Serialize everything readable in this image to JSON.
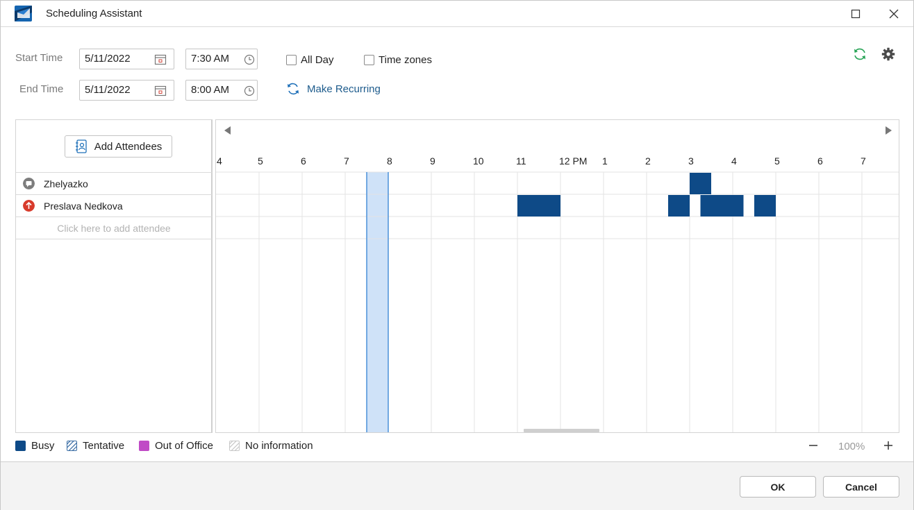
{
  "window": {
    "title": "Scheduling Assistant"
  },
  "form": {
    "start_label": "Start Time",
    "end_label": "End Time",
    "start_date": "5/11/2022",
    "start_time": "7:30 AM",
    "end_date": "5/11/2022",
    "end_time": "8:00 AM",
    "all_day_label": "All Day",
    "time_zones_label": "Time zones",
    "make_recurring_label": "Make Recurring"
  },
  "attendees": {
    "add_button_label": "Add Attendees",
    "list": [
      {
        "name": "Zhelyazko",
        "status_color": "#7d7d7d"
      },
      {
        "name": "Preslava Nedkova",
        "status_color": "#d83b2c"
      }
    ],
    "placeholder": "Click here to add attendee"
  },
  "timeline": {
    "hour_labels": [
      "4",
      "5",
      "6",
      "7",
      "8",
      "9",
      "10",
      "11",
      "12 PM",
      "1",
      "2",
      "3",
      "4",
      "5",
      "6",
      "7"
    ],
    "first_hour": 4,
    "selection": {
      "start": 7.5,
      "end": 8.0
    },
    "busy_blocks": [
      {
        "row": 0,
        "start": 15.0,
        "end": 15.5
      },
      {
        "row": 1,
        "start": 11.0,
        "end": 12.0
      },
      {
        "row": 1,
        "start": 14.5,
        "end": 15.0
      },
      {
        "row": 1,
        "start": 15.25,
        "end": 16.25
      },
      {
        "row": 1,
        "start": 16.5,
        "end": 17.0
      }
    ],
    "colors": {
      "busy": "#0e4a87",
      "selection_fill": "#cfe2f8",
      "selection_border": "#4a90d9",
      "gridline": "#e3e3e3"
    }
  },
  "legend": {
    "busy": "Busy",
    "tentative": "Tentative",
    "out_of_office": "Out of Office",
    "no_information": "No information",
    "colors": {
      "busy": "#0e4a87",
      "tentative": "#3b6ea5",
      "out_of_office": "#c04bc6",
      "no_information": "#c8c8c8"
    }
  },
  "zoom": {
    "value": "100%"
  },
  "footer": {
    "ok_label": "OK",
    "cancel_label": "Cancel"
  }
}
